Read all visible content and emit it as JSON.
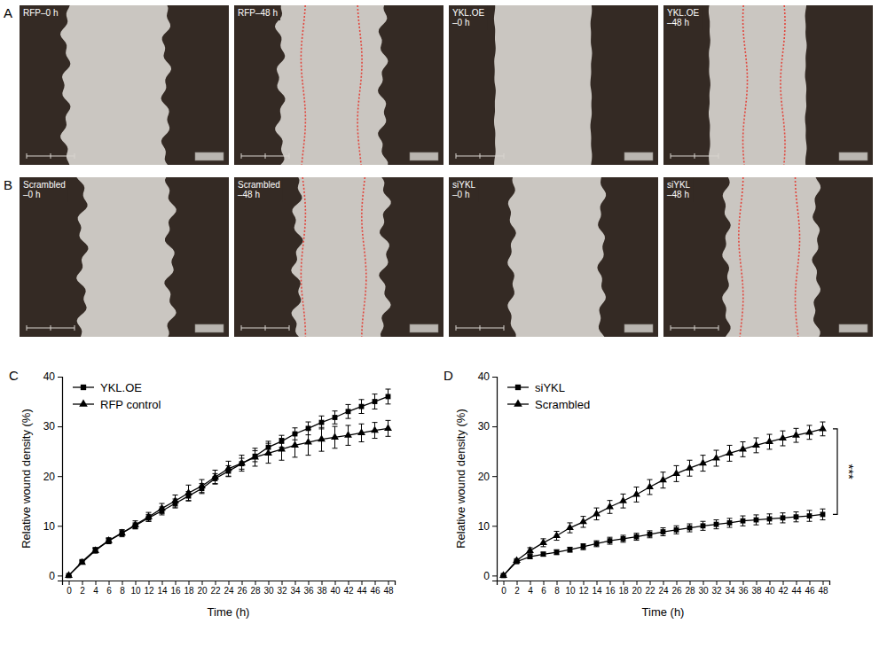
{
  "image_panels": [
    {
      "panel_label": "A",
      "images": [
        {
          "lines": [
            "RFP–0 h"
          ]
        },
        {
          "lines": [
            "RFP–48 h"
          ]
        },
        {
          "lines": [
            "YKL.OE",
            "–0 h"
          ]
        },
        {
          "lines": [
            "YKL.OE",
            "–48 h"
          ]
        }
      ]
    },
    {
      "panel_label": "B",
      "images": [
        {
          "lines": [
            "Scrambled",
            "–0 h"
          ]
        },
        {
          "lines": [
            "Scrambled",
            "–48 h"
          ]
        },
        {
          "lines": [
            "siYKL",
            "–0 h"
          ]
        },
        {
          "lines": [
            "siYKL",
            "–48 h"
          ]
        }
      ]
    }
  ],
  "chart_data": [
    {
      "panel_label": "C",
      "type": "line",
      "x_label": "Time (h)",
      "y_label": "Relative wound density (%)",
      "x": [
        0,
        2,
        4,
        6,
        8,
        10,
        12,
        14,
        16,
        18,
        20,
        22,
        24,
        26,
        28,
        30,
        32,
        34,
        36,
        38,
        40,
        42,
        44,
        46,
        48
      ],
      "xlim": [
        -1,
        49
      ],
      "xticks": [
        0,
        2,
        4,
        6,
        8,
        10,
        12,
        14,
        16,
        18,
        20,
        22,
        24,
        26,
        28,
        30,
        32,
        34,
        36,
        38,
        40,
        42,
        44,
        46,
        48
      ],
      "ylim": [
        -1,
        40
      ],
      "yticks": [
        0,
        10,
        20,
        30,
        40
      ],
      "legend": "upper left",
      "series": [
        {
          "name": "YKL.OE",
          "color": "#000000",
          "marker": "square",
          "line_style": "solid",
          "values": [
            0,
            2.8,
            5.2,
            7,
            8.6,
            10,
            11.6,
            13,
            14.5,
            16,
            17.5,
            19.5,
            21,
            22.5,
            24,
            25.8,
            27,
            28.5,
            29.6,
            30.8,
            31.8,
            33,
            34,
            35,
            36
          ],
          "errors": [
            0,
            0.3,
            0.4,
            0.5,
            0.6,
            0.6,
            0.7,
            0.8,
            0.9,
            0.9,
            1,
            1,
            1.1,
            1.1,
            1.1,
            1.2,
            1.2,
            1.2,
            1.3,
            1.3,
            1.3,
            1.4,
            1.4,
            1.5,
            1.5
          ]
        },
        {
          "name": "RFP control",
          "color": "#000000",
          "marker": "triangle",
          "line_style": "solid",
          "values": [
            0,
            2.6,
            5,
            7,
            8.5,
            10.2,
            11.8,
            13.5,
            15,
            16.6,
            18,
            19.8,
            21.5,
            22.6,
            23.8,
            24.6,
            25.4,
            26.2,
            26.8,
            27.4,
            27.8,
            28.2,
            28.7,
            29.2,
            29.6
          ],
          "errors": [
            0,
            0.3,
            0.5,
            0.6,
            0.7,
            0.8,
            0.9,
            1,
            1.2,
            1.6,
            1.3,
            1.4,
            1.5,
            1.6,
            1.8,
            2,
            2.2,
            2.4,
            2.6,
            2.4,
            2.2,
            2,
            1.8,
            1.6,
            1.6
          ]
        }
      ]
    },
    {
      "panel_label": "D",
      "type": "line",
      "x_label": "Time (h)",
      "y_label": "Relative wound density (%)",
      "x": [
        0,
        2,
        4,
        6,
        8,
        10,
        12,
        14,
        16,
        18,
        20,
        22,
        24,
        26,
        28,
        30,
        32,
        34,
        36,
        38,
        40,
        42,
        44,
        46,
        48
      ],
      "xlim": [
        -1,
        49
      ],
      "xticks": [
        0,
        2,
        4,
        6,
        8,
        10,
        12,
        14,
        16,
        18,
        20,
        22,
        24,
        26,
        28,
        30,
        32,
        34,
        36,
        38,
        40,
        42,
        44,
        46,
        48
      ],
      "ylim": [
        -1,
        40
      ],
      "yticks": [
        0,
        10,
        20,
        30,
        40
      ],
      "legend": "upper left",
      "annotations": [
        {
          "text": "***"
        }
      ],
      "series": [
        {
          "name": "siYKL",
          "color": "#000000",
          "marker": "square",
          "line_style": "solid",
          "values": [
            0,
            2.8,
            3.8,
            4.3,
            4.7,
            5.2,
            5.8,
            6.4,
            7,
            7.4,
            7.8,
            8.3,
            8.8,
            9.2,
            9.6,
            10,
            10.3,
            10.6,
            11,
            11.2,
            11.4,
            11.6,
            11.8,
            12,
            12.3
          ],
          "errors": [
            0,
            0.3,
            0.4,
            0.4,
            0.5,
            0.5,
            0.6,
            0.6,
            0.7,
            0.7,
            0.7,
            0.7,
            0.8,
            0.8,
            0.8,
            0.9,
            0.9,
            0.9,
            1,
            1,
            1,
            1,
            1,
            1.1,
            1.1
          ]
        },
        {
          "name": "Scrambled",
          "color": "#000000",
          "marker": "triangle",
          "line_style": "solid",
          "values": [
            0,
            3,
            5,
            6.6,
            8,
            9.6,
            10.8,
            12.4,
            13.8,
            15,
            16.3,
            17.8,
            19.2,
            20.5,
            21.6,
            22.6,
            23.6,
            24.6,
            25.4,
            26.2,
            26.9,
            27.6,
            28.2,
            28.8,
            29.5
          ],
          "errors": [
            0,
            0.4,
            0.6,
            0.8,
            0.9,
            1,
            1.1,
            1.2,
            1.3,
            1.4,
            1.5,
            1.5,
            1.6,
            1.6,
            1.6,
            1.6,
            1.6,
            1.6,
            1.5,
            1.5,
            1.5,
            1.5,
            1.4,
            1.4,
            1.4
          ]
        }
      ]
    }
  ]
}
